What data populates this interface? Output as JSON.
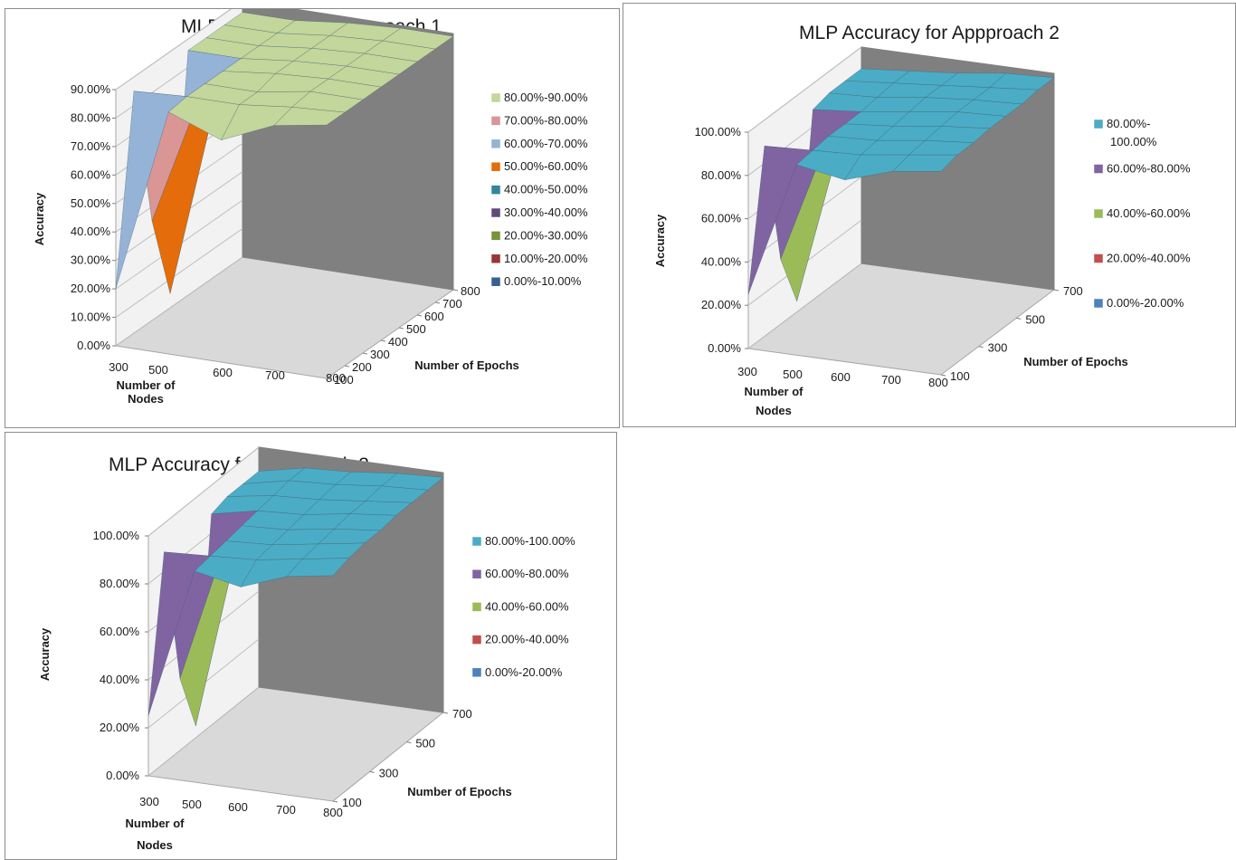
{
  "chart_data": [
    {
      "type": "surface",
      "title": "MLP Accuracy for Appproach 1",
      "zlabel": "Accuracy",
      "xlabel": [
        "Number of",
        "Nodes"
      ],
      "ylabel": "Number of Epochs",
      "z_ticks": [
        "0.00%",
        "10.00%",
        "20.00%",
        "30.00%",
        "40.00%",
        "50.00%",
        "60.00%",
        "70.00%",
        "80.00%",
        "90.00%"
      ],
      "zlim": [
        0,
        90
      ],
      "x_ticks": [
        "300",
        "500",
        "600",
        "700",
        "800"
      ],
      "y_ticks": [
        "100",
        "200",
        "300",
        "400",
        "500",
        "600",
        "700",
        "800"
      ],
      "z_values": [
        [
          20,
          85,
          35,
          5,
          86,
          86,
          86,
          86
        ],
        [
          85,
          86,
          86,
          86,
          86,
          86,
          86,
          86
        ],
        [
          78,
          86,
          86,
          88,
          88,
          88,
          88,
          88
        ],
        [
          86,
          88,
          89,
          89,
          89,
          89,
          89,
          89
        ],
        [
          89,
          89,
          89,
          89,
          89,
          89,
          89,
          89
        ]
      ],
      "legend": [
        {
          "label": "80.00%-90.00%",
          "color": "#c3d69b"
        },
        {
          "label": "70.00%-80.00%",
          "color": "#d99694"
        },
        {
          "label": "60.00%-70.00%",
          "color": "#95b3d7"
        },
        {
          "label": "50.00%-60.00%",
          "color": "#e46c0a"
        },
        {
          "label": "40.00%-50.00%",
          "color": "#31859c"
        },
        {
          "label": "30.00%-40.00%",
          "color": "#604a7b"
        },
        {
          "label": "20.00%-30.00%",
          "color": "#77933c"
        },
        {
          "label": "10.00%-20.00%",
          "color": "#953735"
        },
        {
          "label": "0.00%-10.00%",
          "color": "#376092"
        }
      ]
    },
    {
      "type": "surface",
      "title": "MLP Accuracy for Appproach 2",
      "zlabel": "Accuracy",
      "xlabel": [
        "Number of",
        "Nodes"
      ],
      "ylabel": "Number of Epochs",
      "z_ticks": [
        "0.00%",
        "20.00%",
        "40.00%",
        "60.00%",
        "80.00%",
        "100.00%"
      ],
      "zlim": [
        0,
        100
      ],
      "x_ticks": [
        "300",
        "500",
        "600",
        "700",
        "800"
      ],
      "y_ticks": [
        "100",
        "300",
        "500",
        "700"
      ],
      "z_values": [
        [
          25,
          88,
          30,
          5,
          88,
          90,
          90,
          90
        ],
        [
          88,
          89,
          90,
          90,
          90,
          91,
          92,
          92
        ],
        [
          84,
          90,
          91,
          92,
          93,
          94,
          94,
          94
        ],
        [
          91,
          93,
          94,
          95,
          96,
          96,
          96,
          97
        ],
        [
          94,
          96,
          96,
          97,
          97,
          97,
          98,
          98
        ]
      ],
      "legend": [
        {
          "label": "80.00%-\n100.00%",
          "color": "#4bacc6"
        },
        {
          "label": "60.00%-80.00%",
          "color": "#8064a2"
        },
        {
          "label": "40.00%-60.00%",
          "color": "#9bbb59"
        },
        {
          "label": "20.00%-40.00%",
          "color": "#c0504d"
        },
        {
          "label": "0.00%-20.00%",
          "color": "#4f81bd"
        }
      ]
    },
    {
      "type": "surface",
      "title": "MLP Accuracy for Appproach 3",
      "zlabel": "Accuracy",
      "xlabel": [
        "Number of",
        "Nodes"
      ],
      "ylabel": "Number of Epochs",
      "z_ticks": [
        "0.00%",
        "20.00%",
        "40.00%",
        "60.00%",
        "80.00%",
        "100.00%"
      ],
      "zlim": [
        0,
        100
      ],
      "x_ticks": [
        "300",
        "500",
        "600",
        "700",
        "800"
      ],
      "y_ticks": [
        "100",
        "300",
        "500",
        "700"
      ],
      "z_values": [
        [
          25,
          88,
          30,
          5,
          88,
          90,
          90,
          90
        ],
        [
          88,
          89,
          90,
          91,
          92,
          93,
          94,
          94
        ],
        [
          84,
          90,
          91,
          92,
          93,
          94,
          95,
          95
        ],
        [
          91,
          93,
          94,
          95,
          96,
          96,
          97,
          97
        ],
        [
          94,
          96,
          97,
          97,
          98,
          98,
          98,
          98
        ]
      ],
      "legend": [
        {
          "label": "80.00%-100.00%",
          "color": "#4bacc6"
        },
        {
          "label": "60.00%-80.00%",
          "color": "#8064a2"
        },
        {
          "label": "40.00%-60.00%",
          "color": "#9bbb59"
        },
        {
          "label": "20.00%-40.00%",
          "color": "#c0504d"
        },
        {
          "label": "0.00%-20.00%",
          "color": "#4f81bd"
        }
      ]
    }
  ]
}
